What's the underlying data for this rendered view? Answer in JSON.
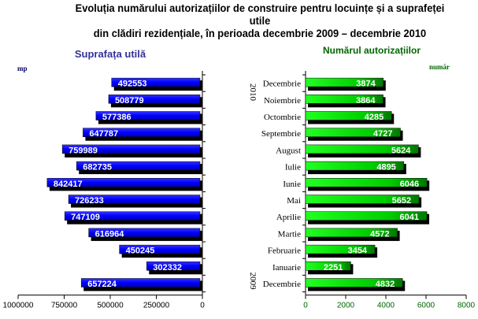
{
  "title_line1": "Evoluția numărului autorizațiilor de construire pentru locuințe și a suprafeței utile",
  "title_line2": "din clădiri rezidențiale, în perioada decembrie 2009 – decembrie 2010",
  "chart_data": [
    {
      "type": "bar",
      "orientation": "horizontal",
      "title": "Suprafața utilă",
      "unit_label": "mp",
      "xlim": [
        0,
        1000000
      ],
      "x_reversed": true,
      "ticks": [
        "1000000",
        "750000",
        "500000",
        "250000",
        "0"
      ],
      "tick_values": [
        1000000,
        750000,
        500000,
        250000,
        0
      ],
      "categories": [
        "Decembrie 2010",
        "Noiembrie 2010",
        "Octombrie 2010",
        "Septembrie 2010",
        "August 2010",
        "Iulie 2010",
        "Iunie 2010",
        "Mai 2010",
        "Aprilie 2010",
        "Martie 2010",
        "Februarie 2010",
        "Ianuarie 2010",
        "Decembrie 2009"
      ],
      "values": [
        492553,
        508779,
        577386,
        647787,
        759989,
        682735,
        842417,
        726233,
        747109,
        616964,
        450245,
        302332,
        657224
      ],
      "color": "#0000ff",
      "title_color": "#333399"
    },
    {
      "type": "bar",
      "orientation": "horizontal",
      "title": "Numărul autorizațiilor",
      "unit_label": "număr",
      "xlim": [
        0,
        8000
      ],
      "ticks": [
        "0",
        "2000",
        "4000",
        "6000",
        "8000"
      ],
      "tick_values": [
        0,
        2000,
        4000,
        6000,
        8000
      ],
      "categories": [
        "Decembrie",
        "Noiembrie",
        "Octombrie",
        "Septembrie",
        "August",
        "Iulie",
        "Iunie",
        "Mai",
        "Aprilie",
        "Martie",
        "Februarie",
        "Ianuarie",
        "Decembrie"
      ],
      "year_labels": [
        "2010",
        "2009"
      ],
      "values": [
        3874,
        3864,
        4285,
        4727,
        5624,
        4895,
        6046,
        5652,
        6041,
        4572,
        3454,
        2251,
        4832
      ],
      "color": "#00dd00",
      "title_color": "#006600"
    }
  ]
}
